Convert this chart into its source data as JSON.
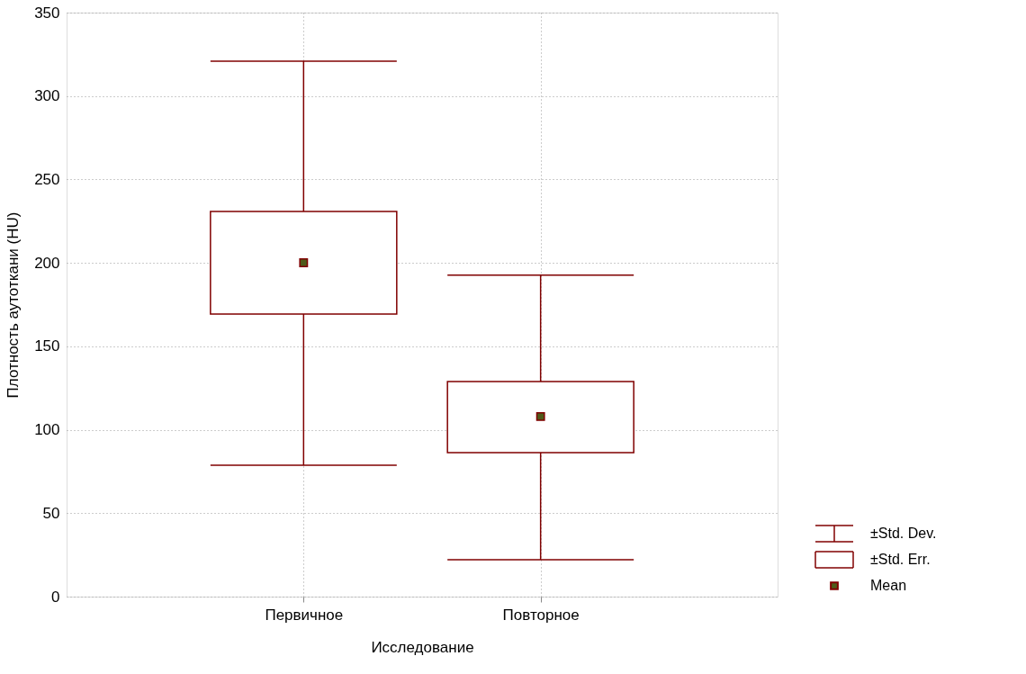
{
  "chart_data": {
    "type": "box",
    "xlabel": "Исследование",
    "ylabel": "Плотность аутоткани (HU)",
    "categories": [
      "Первичное",
      "Повторное"
    ],
    "ylim": [
      0,
      350
    ],
    "yticks": [
      0,
      50,
      100,
      150,
      200,
      250,
      300,
      350
    ],
    "grid": true,
    "legend": "bottom right",
    "annotations": [
      "±Std. Dev.",
      "±Std. Err."
    ],
    "series": [
      {
        "color": "#800000",
        "boxes": [
          {
            "low": 78.7,
            "q1": 169.4,
            "q3": 230.8,
            "high": 320.9
          },
          {
            "low": 22.1,
            "q1": 86.3,
            "q3": 128.9,
            "high": 192.6
          }
        ]
      },
      {
        "type": "scatter",
        "name": "Mean",
        "color": "#4f5a1a",
        "marker": "square",
        "values": [
          200.1,
          107.9
        ]
      }
    ]
  }
}
